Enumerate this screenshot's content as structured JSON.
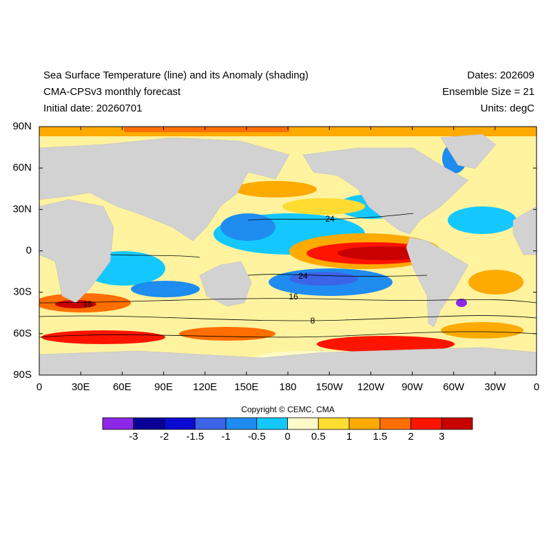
{
  "header": {
    "left": [
      "Sea Surface Temperature (line) and its Anomaly (shading)",
      "CMA-CPSv3 monthly forecast",
      "Initial date: 20260701"
    ],
    "right": [
      "Dates: 202609",
      "Ensemble Size = 21",
      "Units: degC"
    ]
  },
  "map": {
    "xlim": [
      0,
      360
    ],
    "ylim": [
      -90,
      90
    ],
    "xticks": [
      0,
      {
        "value": 30,
        "label": "30E"
      },
      {
        "value": 60,
        "label": "60E"
      },
      {
        "value": 90,
        "label": "90E"
      },
      {
        "value": 120,
        "label": "120E"
      },
      {
        "value": 150,
        "label": "150E"
      },
      180,
      {
        "value": 210,
        "label": "150W"
      },
      {
        "value": 240,
        "label": "120W"
      },
      {
        "value": 270,
        "label": "90W"
      },
      {
        "value": 300,
        "label": "60W"
      },
      {
        "value": 330,
        "label": "30W"
      },
      {
        "value": 360,
        "label": "0"
      }
    ],
    "yticks": [
      {
        "value": 90,
        "label": "90N"
      },
      {
        "value": 60,
        "label": "60N"
      },
      {
        "value": 30,
        "label": "30N"
      },
      0,
      {
        "value": -30,
        "label": "30S"
      },
      {
        "value": -60,
        "label": "60S"
      },
      {
        "value": -90,
        "label": "90S"
      }
    ],
    "contour_labels": [
      24,
      24,
      16,
      16,
      8
    ]
  },
  "copyright": "Copyright © CEMC, CMA",
  "colorbar": {
    "colors": [
      "#8c28e6",
      "#0a0096",
      "#0a0ad2",
      "#3c64e6",
      "#1e8cf0",
      "#14c8ff",
      "#fffac8",
      "#ffdc32",
      "#ffaa00",
      "#ff6e00",
      "#ff1400",
      "#c80000"
    ],
    "labels": [
      -3,
      -2,
      -1.5,
      -1,
      -0.5,
      0,
      0.5,
      1,
      1.5,
      2,
      3
    ]
  }
}
